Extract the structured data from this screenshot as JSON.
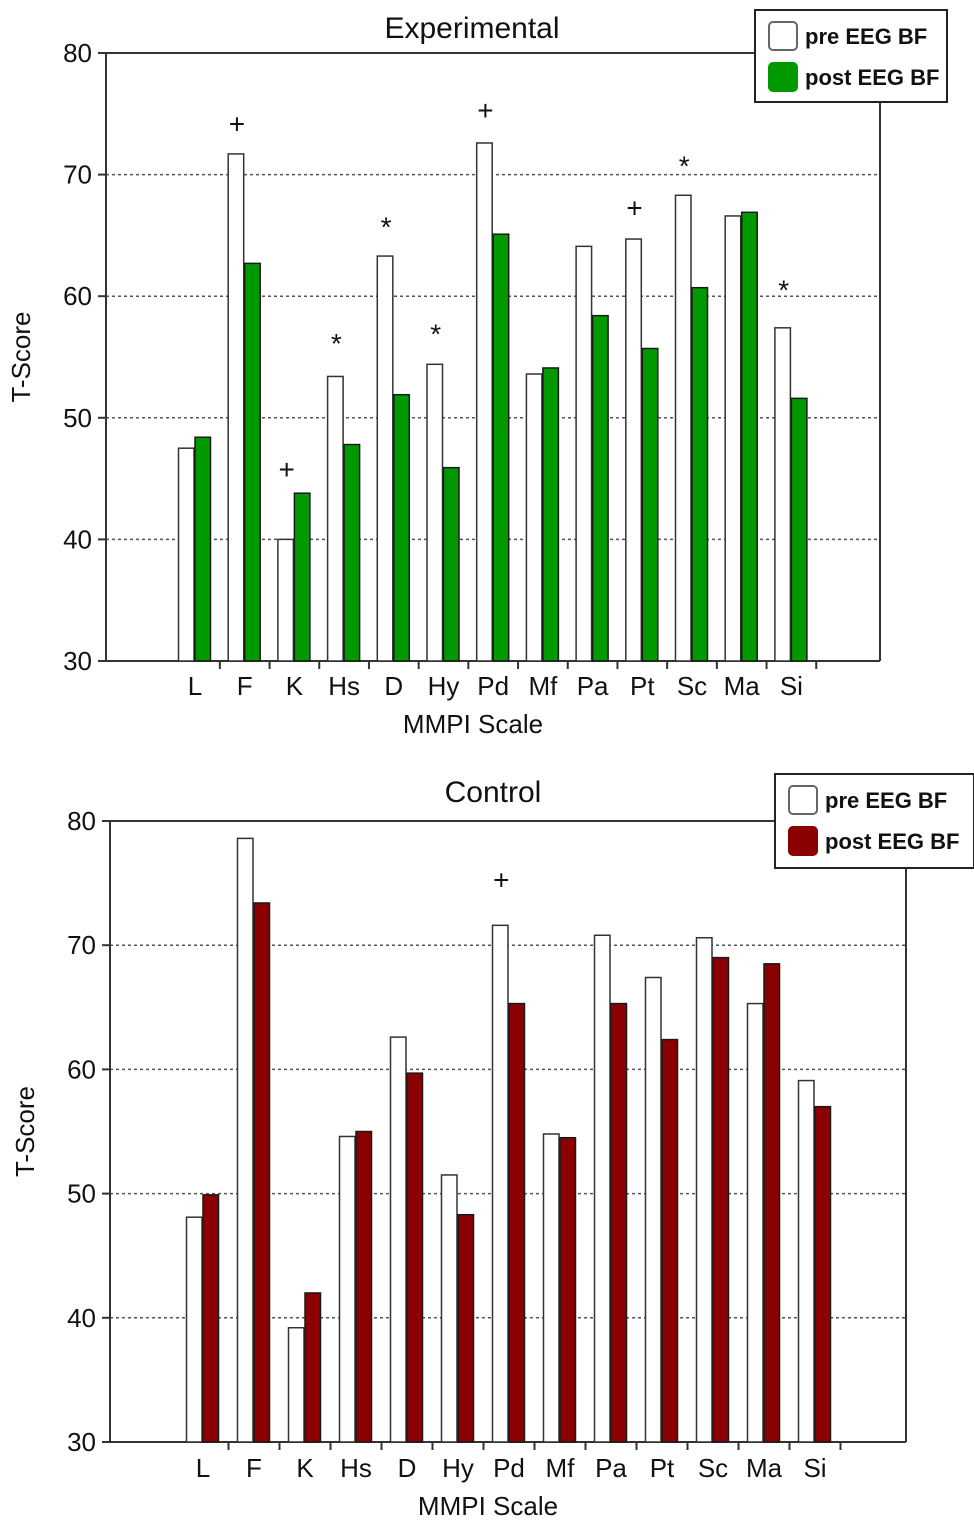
{
  "chart_data": [
    {
      "type": "bar",
      "title": "Experimental",
      "xlabel": "MMPI Scale",
      "ylabel": "T-Score",
      "ylim": [
        30,
        80
      ],
      "yticks": [
        30,
        40,
        50,
        60,
        70,
        80
      ],
      "grid": true,
      "legend_position": "top-right",
      "categories": [
        "L",
        "F",
        "K",
        "Hs",
        "D",
        "Hy",
        "Pd",
        "Mf",
        "Pa",
        "Pt",
        "Sc",
        "Ma",
        "Si"
      ],
      "series": [
        {
          "name": "pre EEG BF",
          "color": "#ffffff",
          "values": [
            47.5,
            71.7,
            40.0,
            53.4,
            63.3,
            54.4,
            72.6,
            53.6,
            64.1,
            64.7,
            68.3,
            66.6,
            57.4
          ]
        },
        {
          "name": "post EEG BF",
          "color": "#009a00",
          "values": [
            48.4,
            62.7,
            43.8,
            47.8,
            51.9,
            45.9,
            65.1,
            54.1,
            58.4,
            55.7,
            60.7,
            66.9,
            51.6
          ]
        }
      ],
      "annotations": [
        {
          "category": "F",
          "symbol": "+",
          "y": 74.2
        },
        {
          "category": "K",
          "symbol": "+",
          "y": 45.8
        },
        {
          "category": "Hs",
          "symbol": "*",
          "y": 56.8
        },
        {
          "category": "D",
          "symbol": "*",
          "y": 66.4
        },
        {
          "category": "Hy",
          "symbol": "*",
          "y": 57.6
        },
        {
          "category": "Pd",
          "symbol": "+",
          "y": 75.3
        },
        {
          "category": "Pt",
          "symbol": "+",
          "y": 67.3
        },
        {
          "category": "Sc",
          "symbol": "*",
          "y": 71.4
        },
        {
          "category": "Si",
          "symbol": "*",
          "y": 61.2
        }
      ]
    },
    {
      "type": "bar",
      "title": "Control",
      "xlabel": "MMPI Scale",
      "ylabel": "T-Score",
      "ylim": [
        30,
        80
      ],
      "yticks": [
        30,
        40,
        50,
        60,
        70,
        80
      ],
      "grid": true,
      "legend_position": "top-right",
      "categories": [
        "L",
        "F",
        "K",
        "Hs",
        "D",
        "Hy",
        "Pd",
        "Mf",
        "Pa",
        "Pt",
        "Sc",
        "Ma",
        "Si"
      ],
      "series": [
        {
          "name": "pre EEG BF",
          "color": "#ffffff",
          "values": [
            48.1,
            78.6,
            39.2,
            54.6,
            62.6,
            51.5,
            71.6,
            54.8,
            70.8,
            67.4,
            70.6,
            65.3,
            59.1
          ]
        },
        {
          "name": "post EEG BF",
          "color": "#8b0000",
          "values": [
            49.9,
            73.4,
            42.0,
            55.0,
            59.7,
            48.3,
            65.3,
            54.5,
            65.3,
            62.4,
            69.0,
            68.5,
            57.0
          ]
        }
      ],
      "annotations": [
        {
          "category": "Pd",
          "symbol": "+",
          "y": 75.3
        }
      ]
    }
  ]
}
